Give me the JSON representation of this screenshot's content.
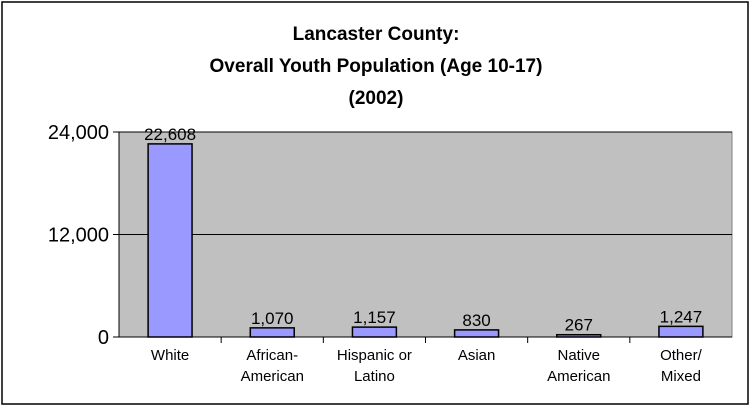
{
  "chart_data": {
    "type": "bar",
    "title_lines": [
      "Lancaster County:",
      "Overall Youth Population (Age 10-17)",
      "(2002)"
    ],
    "categories": [
      [
        "White"
      ],
      [
        "African-",
        "American"
      ],
      [
        "Hispanic or",
        "Latino"
      ],
      [
        "Asian"
      ],
      [
        "Native",
        "American"
      ],
      [
        "Other/",
        "Mixed"
      ]
    ],
    "values": [
      22608,
      1070,
      1157,
      830,
      267,
      1247
    ],
    "value_labels": [
      "22,608",
      "1,070",
      "1,157",
      "830",
      "267",
      "1,247"
    ],
    "y_ticks": [
      0,
      12000,
      24000
    ],
    "y_tick_labels": [
      "0",
      "12,000",
      "24,000"
    ],
    "ylim": [
      0,
      24000
    ],
    "grid": true,
    "legend": "none",
    "colors": {
      "plot_bg": "#c0c0c0",
      "bar_fill": "#9999ff",
      "bar_stroke": "#000000",
      "gridline": "#000000",
      "text": "#000000"
    }
  }
}
